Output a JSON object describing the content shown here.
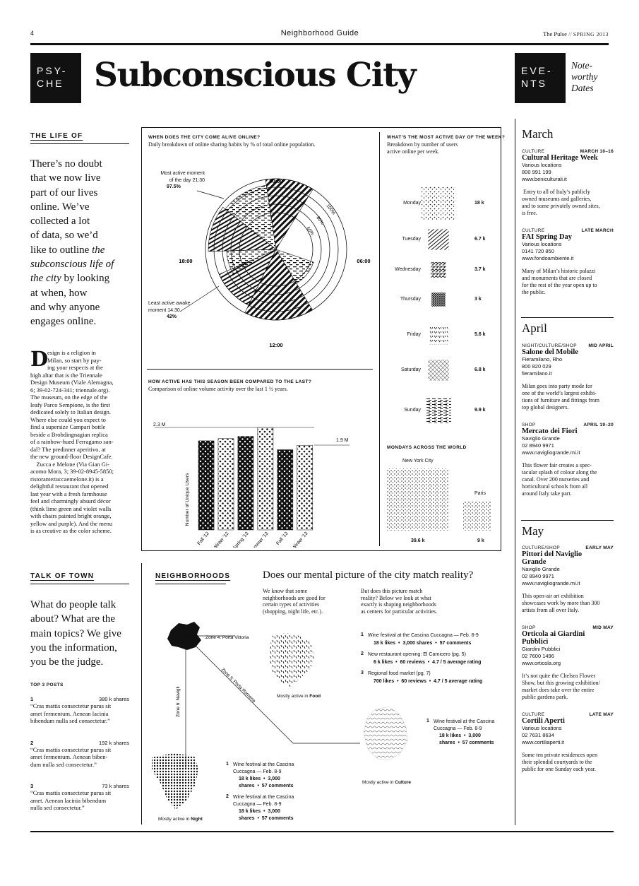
{
  "header": {
    "page_number": "4",
    "section": "Neighborhood Guide",
    "publication": "The Pulse",
    "separator": "//",
    "issue": "SPRING 2013"
  },
  "title": {
    "badge_left": [
      "PSY-",
      "CHE"
    ],
    "main": "Subconscious City",
    "badge_right": [
      "EVE-",
      "NTS"
    ],
    "events_note": [
      "Note-",
      "worthy",
      "Dates"
    ]
  },
  "life": {
    "heading": "THE LIFE OF",
    "lead": [
      {
        "t": "There’s no doubt"
      },
      {
        "t": "that we now live"
      },
      {
        "t": "part of our lives"
      },
      {
        "t": "online. We’ve"
      },
      {
        "t": "collected a lot"
      },
      {
        "t": "of data, so we’d"
      },
      {
        "t": "like to outline ",
        "i": "the"
      },
      {
        "i": "subconscious life of"
      },
      {
        "i": "the city",
        "t2": " by looking"
      },
      {
        "t": "at when, how"
      },
      {
        "t": "and why anyone"
      },
      {
        "t": "engages online."
      }
    ],
    "dropcap": "D",
    "drop_lines": [
      "esign is a religion in",
      "Milan, so start by pay-",
      "ing your respects at the"
    ],
    "body_lines": [
      "high altar that is the Triennale",
      "Design Museum (Viale Alemagna,",
      "6; 39-02-724-341; triennale.org).",
      "The museum, on the edge of the",
      "leafy Parco Sempione, is the first",
      "dedicated solely to Italian design.",
      "Where else could you expect to",
      "find a supersize Campari bottle",
      "beside a Brobdingnagian replica",
      "of a rainbow-hued Ferragamo san-",
      "dal? The predinner aperitivo, at",
      "the new ground-floor DesignCafe.",
      "    Zucca e Melone (Via Gian Gi-",
      "acomo Mora, 3; 39-02-8945-5850;",
      "ristorantezuccaemelone.it) is a",
      "delightful restaurant that opened",
      "last year with a fresh farmhouse",
      "feel and charmingly absurd décor",
      "(think lime green and violet walls",
      "with chairs painted bright orange,",
      "yellow and purple). And the menu",
      "is as creative as the color scheme."
    ]
  },
  "radial": {
    "title": "WHEN DOES THE CITY COME ALIVE ONLINE?",
    "subtitle": "Daily breakdown of online sharing habits by % of total online population.",
    "most_label": [
      "Most active moment",
      "of the day 21:30"
    ],
    "most_value": "97.5%",
    "least_label": [
      "Least active awake",
      "moment 14:30"
    ],
    "least_value": "42%",
    "hours": {
      "top": "00:00",
      "right": "06:00",
      "bottom": "12:00",
      "left": "18:00"
    },
    "rings": [
      "100%",
      "80%",
      "60%"
    ]
  },
  "weekday": {
    "title": "WHAT’S THE MOST ACTIVE DAY OF THE WEEK?",
    "subtitle": [
      "Breakdown by number of users",
      "active online per week."
    ],
    "days": [
      {
        "day": "Monday",
        "val": "18 k",
        "n": 18
      },
      {
        "day": "Tuesday",
        "val": "6.7 k",
        "n": 6.7
      },
      {
        "day": "Wednesday",
        "val": "3.7 k",
        "n": 3.7
      },
      {
        "day": "Thursday",
        "val": "3 k",
        "n": 3
      },
      {
        "day": "Friday",
        "val": "5.6 k",
        "n": 5.6
      },
      {
        "day": "Saturday",
        "val": "6.8 k",
        "n": 6.8
      },
      {
        "day": "Sunday",
        "val": "9.9 k",
        "n": 9.9
      }
    ]
  },
  "mondays": {
    "title": "MONDAYS ACROSS THE WORLD",
    "cities": [
      {
        "name": "New York City",
        "val": "39.6 k"
      },
      {
        "name": "Paris",
        "val": "9 k"
      }
    ]
  },
  "season": {
    "title": "HOW ACTIVE HAS THIS SEASON BEEN COMPARED TO THE LAST?",
    "subtitle": "Comparison of online volume activity over the last 1 ½ years.",
    "max_label": "2.3 M",
    "end_label": "1.9 M",
    "ylabel": "Number of Unique Users",
    "categories": [
      "Fall '12",
      "Winter '12",
      "Spring '13",
      "Summer '13",
      "Fall '13",
      "Winter '13"
    ]
  },
  "chart_data": {
    "type": "area",
    "title": "HOW ACTIVE HAS THIS SEASON BEEN COMPARED TO THE LAST?",
    "ylabel": "Number of Unique Users",
    "categories": [
      "Fall '12",
      "Winter '12",
      "Spring '13",
      "Summer '13",
      "Fall '13",
      "Winter '13"
    ],
    "values": [
      2.0,
      2.05,
      2.1,
      2.3,
      1.8,
      1.9
    ],
    "unit": "M"
  },
  "talk": {
    "heading": "TALK OF TOWN",
    "lead": [
      "What do people talk",
      "about? What are the",
      "main topics? We give",
      "you the information,",
      "you be the judge."
    ],
    "top_label": "TOP 3 POSTS",
    "posts": [
      {
        "rank": "1",
        "shares": "380 k shares",
        "lines": [
          "“Cras mattis consectetur purus sit",
          "amet fermentum. Aenean lacinia",
          "bibendum nulla sed consectetur.”"
        ]
      },
      {
        "rank": "2",
        "shares": "192 k shares",
        "lines": [
          "“Cras mattis consectetur purus sit",
          "amet fermentum. Aenean biben-",
          "dum nulla sed consectetur.”"
        ]
      },
      {
        "rank": "3",
        "shares": "73 k shares",
        "lines": [
          "“Cras mattis consectetur purus sit",
          "amet. Aenean lacinia bibendum",
          "nulla sed consectetur.”"
        ]
      }
    ]
  },
  "hoods": {
    "heading": "NEIGHBORHOODS",
    "question": "Does our mental picture of the city match reality?",
    "intro_a": [
      "We know that some",
      "neighborhoods are good for",
      "certain types of activities",
      "(shopping, night life, etc.)."
    ],
    "intro_b": [
      "But does this picture match",
      "reality? Below we look at what",
      "exactly is shaping neighborhoods",
      "as centers for particular activities."
    ],
    "zone4": "Zone 4: Porta Vittoria",
    "zone5": "Zone 5: Porta Romena",
    "zone6": "Zone 6: Navigli",
    "food_caption": "Mostly active in ",
    "food": "Food",
    "culture_caption": "Mostly active in ",
    "culture": "Culture",
    "night_caption": "Mostly active in ",
    "night": "Night",
    "food_items": [
      {
        "n": "1",
        "t": "Wine festival at the Cascina Cuccagna — Feb. 8-9",
        "s": "18 k likes  •  3,000 shares  •  57 comments"
      },
      {
        "n": "2",
        "t": "New restaurant opening: El Carnicero (pg. 5)",
        "s": "6 k likes  •  60 reviews  •  4.7 / 5 average rating"
      },
      {
        "n": "3",
        "t": "Regional food market (pg. 7)",
        "s": "700 likes  •  60 reviews  •  4.7 / 5 average rating"
      }
    ],
    "culture_item": {
      "n": "1",
      "t": [
        "Wine festival at the Cascina",
        "Cuccagna — Feb. 8-9"
      ],
      "s": [
        "18 k likes  •  3,000",
        "shares  •  57 comments"
      ]
    },
    "night_items": [
      {
        "n": "1",
        "t": [
          "Wine festival at the Cascina",
          "Cuccagna — Feb. 8-9"
        ],
        "s": [
          "18 k likes  •  3,000",
          "shares  •  57 comments"
        ]
      },
      {
        "n": "2",
        "t": [
          "Wine festival at the Cascina",
          "Cuccagna — Feb. 8-9"
        ],
        "s": [
          "18 k likes  •  3,000",
          "shares  •  57 comments"
        ]
      }
    ]
  },
  "events": {
    "months": [
      "March",
      "April",
      "May"
    ],
    "list": [
      {
        "cat": "CULTURE",
        "date": "MARCH 10–16",
        "name": [
          "Cultural Heritage Week"
        ],
        "info": [
          "Various locations",
          "800 991 199",
          "www.beniculturali.it"
        ],
        "desc": [
          " Entry to all of Italy’s publicly",
          "owned museums and galleries,",
          "and to some privately owned sites,",
          "is free."
        ]
      },
      {
        "cat": "CULTURE",
        "date": "LATE MARCH",
        "name": [
          "FAI Spring Day"
        ],
        "info": [
          "Various locations",
          "0141 720 850",
          "www.fondoambiente.it"
        ],
        "desc": [
          "Many of Milan’s historic palazzi",
          "and monuments that are closed",
          "for the rest of the year open up to",
          "the public."
        ]
      },
      {
        "cat": "NIGHT/CULTURE/SHOP",
        "date": "MID APRIL",
        "name": [
          "Salone del Mobile"
        ],
        "info": [
          "Fieramilano, Rho",
          "800 820 029",
          "fieramilano.it"
        ],
        "desc": [
          "Milan goes into party mode for",
          "one of the world’s largest exhibi-",
          "tions of furniture and fittings from",
          "top global designers."
        ]
      },
      {
        "cat": "SHOP",
        "date": "APRIL 19–20",
        "name": [
          "Mercato dei Fiori"
        ],
        "info": [
          "Naviglio Grande",
          "02 8940 9971",
          "www.navigliogrande.mi.it"
        ],
        "desc": [
          "This flower fair creates a spec-",
          "tacular splash of colour along the",
          "canal. Over 200 nurseries and",
          "horticultural schools from all",
          "around Italy take part."
        ]
      },
      {
        "cat": "CULTURE/SHOP",
        "date": "EARLY MAY",
        "name": [
          "Pittori del Naviglio",
          "Grande"
        ],
        "info": [
          "Naviglio Grande",
          "02 8940 9971",
          "www.navigliogrande.mi.it"
        ],
        "desc": [
          "This open-air art exhibition",
          "showcases work by more than 300",
          "artists from all over Italy."
        ]
      },
      {
        "cat": "SHOP",
        "date": "MID MAY",
        "name": [
          "Orticola ai Giardini",
          "Pubblici"
        ],
        "info": [
          "Giardini Pubblici",
          "02 7600 1496",
          "www.orticola.org"
        ],
        "desc": [
          "It’s not quite the Chelsea Flower",
          "Show, but this growing exhibition/",
          "market does take over the entire",
          "public gardens park."
        ]
      },
      {
        "cat": "CULTURE",
        "date": "LATE MAY",
        "name": [
          "Cortili Aperti"
        ],
        "info": [
          "Various locations",
          "02 7631 8634",
          "www.cortiliaperti.it"
        ],
        "desc": [
          "Some ten private residences open",
          "their splendid courtyards to the",
          "public for one Sunday each year."
        ]
      }
    ]
  }
}
